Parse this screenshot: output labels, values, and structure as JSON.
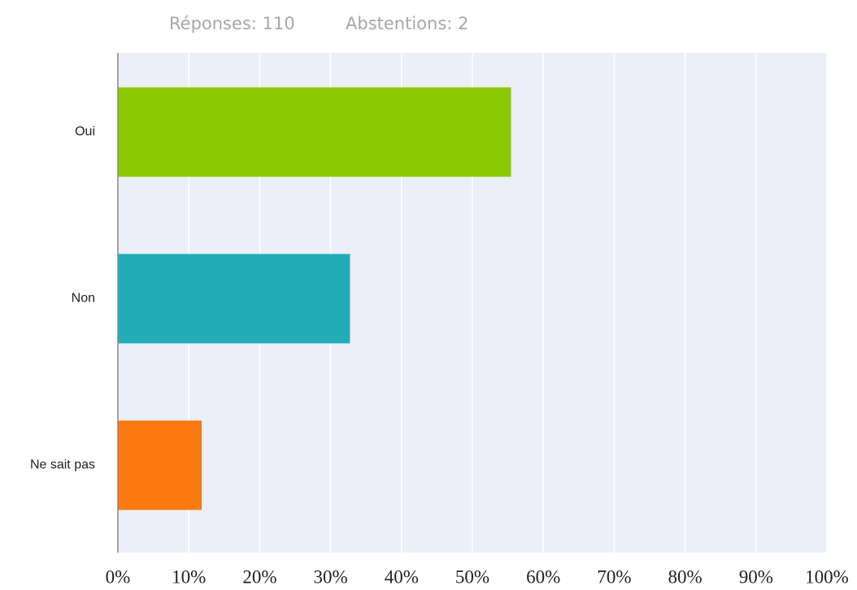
{
  "chart_data": {
    "type": "hbar",
    "annotations": [
      "Réponses: 110",
      "Abstentions: 2"
    ],
    "categories": [
      "Oui",
      "Non",
      "Ne sait pas"
    ],
    "values": [
      55.45,
      32.73,
      11.82
    ],
    "colors": [
      "#8cc800",
      "#21acb8",
      "#fb7a10"
    ],
    "xlim": [
      0,
      100
    ],
    "xticks": [
      {
        "value": 0,
        "label": "0%"
      },
      {
        "value": 10,
        "label": "10%"
      },
      {
        "value": 20,
        "label": "20%"
      },
      {
        "value": 30,
        "label": "30%"
      },
      {
        "value": 40,
        "label": "40%"
      },
      {
        "value": 50,
        "label": "50%"
      },
      {
        "value": 60,
        "label": "60%"
      },
      {
        "value": 70,
        "label": "70%"
      },
      {
        "value": 80,
        "label": "80%"
      },
      {
        "value": 90,
        "label": "90%"
      },
      {
        "value": 100,
        "label": "100%"
      }
    ],
    "grid": true
  }
}
